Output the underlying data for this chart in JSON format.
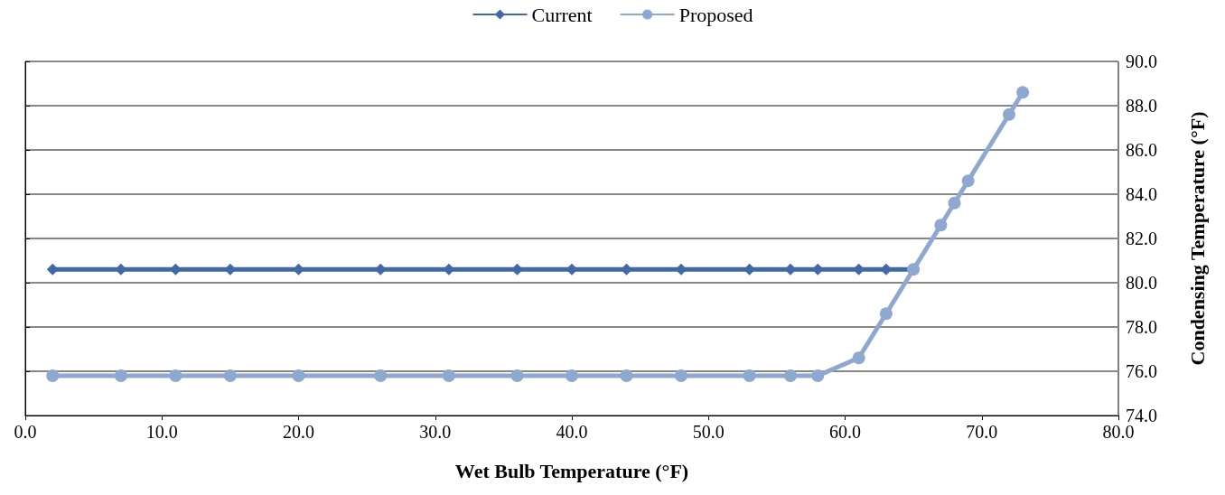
{
  "chart_data": {
    "type": "line",
    "xlabel": "Wet Bulb Temperature (°F)",
    "ylabel": "Condensing Temperature (°F)",
    "xlim": [
      0,
      80
    ],
    "xticks": [
      {
        "value": 0,
        "label": "0.0"
      },
      {
        "value": 10,
        "label": "10.0"
      },
      {
        "value": 20,
        "label": "20.0"
      },
      {
        "value": 30,
        "label": "30.0"
      },
      {
        "value": 40,
        "label": "40.0"
      },
      {
        "value": 50,
        "label": "50.0"
      },
      {
        "value": 60,
        "label": "60.0"
      },
      {
        "value": 70,
        "label": "70.0"
      },
      {
        "value": 80,
        "label": "80.0"
      }
    ],
    "ylim": [
      74,
      90
    ],
    "yticks": [
      {
        "value": 74,
        "label": "74.0"
      },
      {
        "value": 76,
        "label": "76.0"
      },
      {
        "value": 78,
        "label": "78.0"
      },
      {
        "value": 80,
        "label": "80.0"
      },
      {
        "value": 82,
        "label": "82.0"
      },
      {
        "value": 84,
        "label": "84.0"
      },
      {
        "value": 86,
        "label": "86.0"
      },
      {
        "value": 88,
        "label": "88.0"
      },
      {
        "value": 90,
        "label": "90.0"
      }
    ],
    "grid": "y",
    "legend": "top",
    "series": [
      {
        "name": "Current",
        "color": "#3f6aa5",
        "marker": "diamond",
        "x": [
          2,
          7,
          11,
          15,
          20,
          26,
          31,
          36,
          40,
          44,
          48,
          53,
          56,
          58,
          61,
          63,
          65
        ],
        "values": [
          80.6,
          80.6,
          80.6,
          80.6,
          80.6,
          80.6,
          80.6,
          80.6,
          80.6,
          80.6,
          80.6,
          80.6,
          80.6,
          80.6,
          80.6,
          80.6,
          80.6
        ]
      },
      {
        "name": "Proposed",
        "color": "#8fa8d0",
        "marker": "circle",
        "x": [
          2,
          7,
          11,
          15,
          20,
          26,
          31,
          36,
          40,
          44,
          48,
          53,
          56,
          58,
          61,
          63,
          65,
          67,
          68,
          69,
          72,
          73
        ],
        "values": [
          75.8,
          75.8,
          75.8,
          75.8,
          75.8,
          75.8,
          75.8,
          75.8,
          75.8,
          75.8,
          75.8,
          75.8,
          75.8,
          75.8,
          76.6,
          78.6,
          80.6,
          82.6,
          83.6,
          84.6,
          87.6,
          88.6
        ]
      }
    ]
  }
}
